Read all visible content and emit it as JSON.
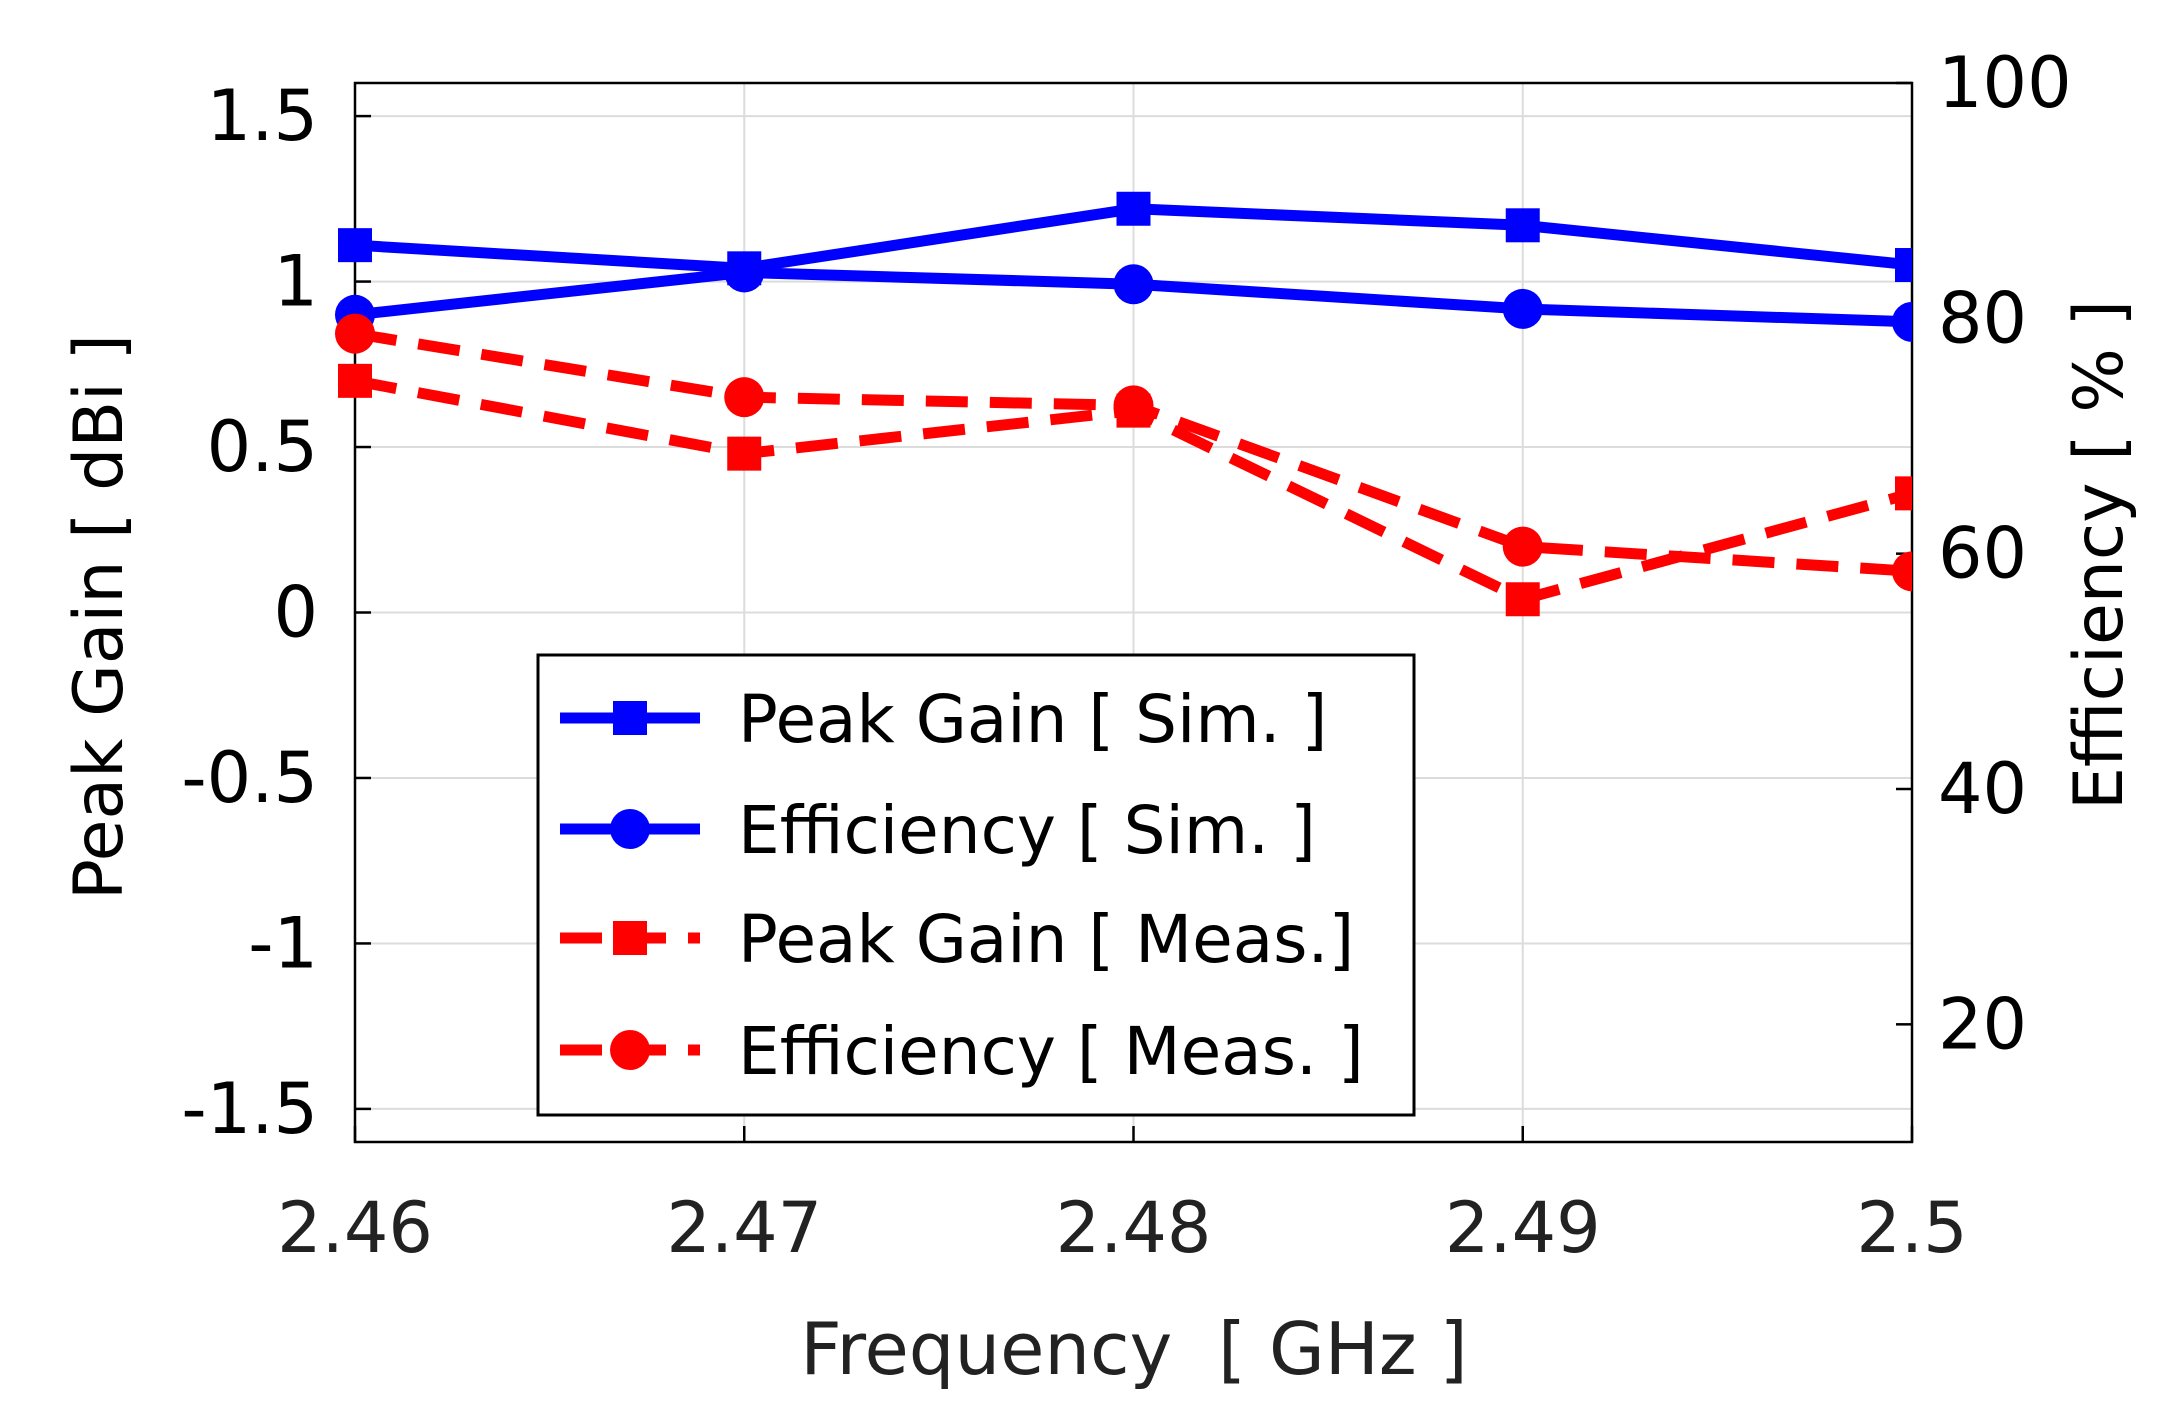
{
  "chart_data": {
    "type": "line",
    "xlabel": "Frequency  [ GHz ]",
    "ylabel_left": "Peak Gain [ dBi ]",
    "ylabel_right": "Efficiency [ % ]",
    "x": [
      2.46,
      2.47,
      2.48,
      2.49,
      2.5
    ],
    "x_tick_labels": [
      "2.46",
      "2.47",
      "2.48",
      "2.49",
      "2.5"
    ],
    "xlim": [
      2.46,
      2.5
    ],
    "ylim_left": [
      -1.6,
      1.6
    ],
    "ylim_right": [
      10,
      100
    ],
    "y_left_ticks": [
      -1.5,
      -1,
      -0.5,
      0,
      0.5,
      1,
      1.5
    ],
    "y_left_tick_labels": [
      "-1.5",
      "-1",
      "-0.5",
      "0",
      "0.5",
      "1",
      "1.5"
    ],
    "y_right_ticks": [
      20,
      40,
      60,
      80,
      100
    ],
    "y_right_tick_labels": [
      "20",
      "40",
      "60",
      "80",
      "100"
    ],
    "grid": true,
    "legend_position": "lower-left",
    "series": [
      {
        "name": "Peak Gain [ Sim. ]",
        "axis": "left",
        "color": "#0000ff",
        "dash": "solid",
        "marker": "square",
        "values": [
          1.11,
          1.04,
          1.22,
          1.17,
          1.05
        ]
      },
      {
        "name": "Efficiency [ Sim. ]",
        "axis": "right",
        "color": "#0000ff",
        "dash": "solid",
        "marker": "circle",
        "values": [
          80.3,
          83.9,
          82.9,
          80.8,
          79.7
        ]
      },
      {
        "name": "Peak Gain [ Meas.]",
        "axis": "left",
        "color": "#ff0000",
        "dash": "dashed",
        "marker": "square",
        "values": [
          0.7,
          0.48,
          0.61,
          0.04,
          0.36
        ]
      },
      {
        "name": "Efficiency [ Meas. ]",
        "axis": "right",
        "color": "#ff0000",
        "dash": "dashed",
        "marker": "circle",
        "values": [
          78.7,
          73.3,
          72.6,
          60.6,
          58.5
        ]
      }
    ]
  }
}
